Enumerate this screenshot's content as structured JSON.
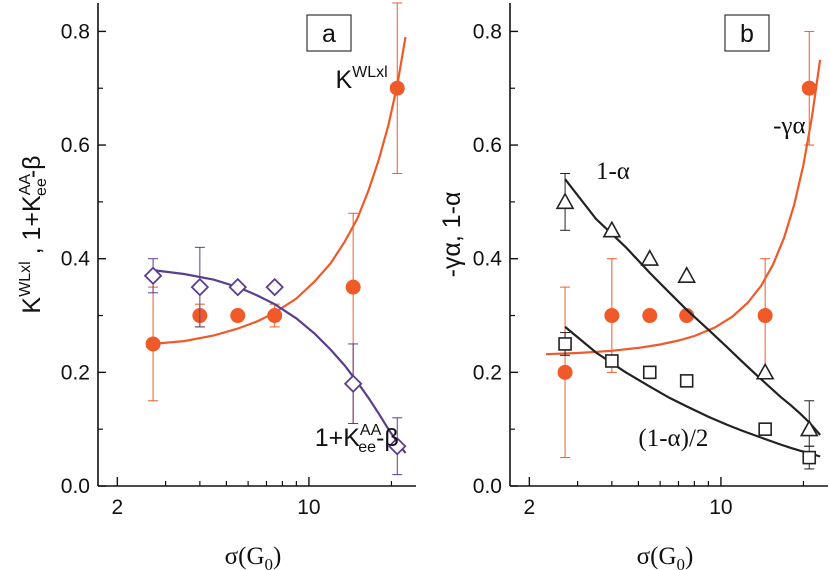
{
  "chart_data": [
    {
      "panel": "a",
      "type": "scatter",
      "x_scale": "log",
      "xlim": [
        1.7,
        25
      ],
      "ylim": [
        0,
        0.85
      ],
      "x_ticks": [
        {
          "value": 2,
          "label": "2"
        },
        {
          "value": 10,
          "label": "10"
        }
      ],
      "y_ticks": [
        {
          "value": 0.0,
          "label": "0.0"
        },
        {
          "value": 0.2,
          "label": "0.2"
        },
        {
          "value": 0.4,
          "label": "0.4"
        },
        {
          "value": 0.6,
          "label": "0.6"
        },
        {
          "value": 0.8,
          "label": "0.8"
        }
      ],
      "xlabel": "σ(G0)",
      "ylabel": "K^WLxl , 1+K_ee^AA-β",
      "panel_label": "a",
      "series": [
        {
          "label_main": "K",
          "label_sup": "WLxl",
          "label_anchor": {
            "x": 12.5,
            "y": 0.7
          },
          "marker": "filled-circle",
          "color": "#f05a28",
          "x": [
            2.7,
            4.0,
            5.5,
            7.5,
            14.5,
            21.0
          ],
          "y": [
            0.25,
            0.3,
            0.3,
            0.3,
            0.35,
            0.7
          ],
          "err_low": [
            0.15,
            0.28,
            null,
            0.28,
            0.11,
            0.55
          ],
          "err_high": [
            0.35,
            0.32,
            null,
            0.32,
            0.48,
            0.85
          ],
          "fit": {
            "color": "#f05a28",
            "x": [
              2.7,
              3.5,
              4.5,
              5.5,
              6.5,
              7.5,
              9,
              10.5,
              12,
              13.5,
              15,
              16.5,
              18,
              19.5,
              21,
              22.5
            ],
            "y": [
              0.25,
              0.255,
              0.265,
              0.277,
              0.29,
              0.305,
              0.33,
              0.36,
              0.392,
              0.43,
              0.47,
              0.52,
              0.575,
              0.635,
              0.705,
              0.79
            ]
          }
        },
        {
          "label_main": "1+K",
          "label_sup": "AA",
          "label_sub": "ee",
          "label_tail": "-β",
          "label_anchor": {
            "x": 10.5,
            "y": 0.07
          },
          "marker": "open-diamond",
          "color": "#5b3d8f",
          "x": [
            2.7,
            4.0,
            5.5,
            7.5,
            14.5,
            21.0
          ],
          "y": [
            0.37,
            0.35,
            0.35,
            0.35,
            0.18,
            0.07
          ],
          "err_low": [
            0.34,
            0.28,
            null,
            null,
            0.11,
            0.02
          ],
          "err_high": [
            0.4,
            0.42,
            null,
            null,
            0.25,
            0.12
          ],
          "fit": {
            "color": "#5b3d8f",
            "x": [
              2.7,
              3.5,
              4.5,
              5.5,
              6.5,
              7.5,
              9,
              10.5,
              12,
              13.5,
              15,
              16.5,
              18,
              19.5,
              21,
              22.5
            ],
            "y": [
              0.38,
              0.373,
              0.363,
              0.35,
              0.335,
              0.32,
              0.295,
              0.268,
              0.24,
              0.212,
              0.183,
              0.155,
              0.127,
              0.1,
              0.077,
              0.058
            ]
          }
        }
      ]
    },
    {
      "panel": "b",
      "type": "scatter",
      "x_scale": "log",
      "xlim": [
        1.7,
        25
      ],
      "ylim": [
        0,
        0.85
      ],
      "x_ticks": [
        {
          "value": 2,
          "label": "2"
        },
        {
          "value": 10,
          "label": "10"
        }
      ],
      "y_ticks": [
        {
          "value": 0.0,
          "label": "0.0"
        },
        {
          "value": 0.2,
          "label": "0.2"
        },
        {
          "value": 0.4,
          "label": "0.4"
        },
        {
          "value": 0.6,
          "label": "0.6"
        },
        {
          "value": 0.8,
          "label": "0.8"
        }
      ],
      "xlabel": "σ(G0)",
      "ylabel": "-γα, 1-α",
      "panel_label": "b",
      "series": [
        {
          "label_main": "-γα",
          "label_anchor": {
            "x": 15.5,
            "y": 0.62
          },
          "marker": "filled-circle",
          "color": "#f05a28",
          "x": [
            2.7,
            4.0,
            5.5,
            7.5,
            14.5,
            21.0
          ],
          "y": [
            0.2,
            0.3,
            0.3,
            0.3,
            0.3,
            0.7
          ],
          "err_low": [
            0.05,
            0.2,
            null,
            null,
            0.2,
            0.6
          ],
          "err_high": [
            0.35,
            0.4,
            null,
            null,
            0.4,
            0.8
          ],
          "fit": {
            "color": "#f05a28",
            "x": [
              2.3,
              3,
              4,
              5,
              6,
              7,
              8,
              9.5,
              11,
              12.5,
              14,
              15.5,
              17,
              18.5,
              20,
              21.5,
              23
            ],
            "y": [
              0.232,
              0.234,
              0.238,
              0.243,
              0.249,
              0.256,
              0.264,
              0.279,
              0.298,
              0.322,
              0.352,
              0.39,
              0.437,
              0.495,
              0.565,
              0.65,
              0.75
            ]
          }
        },
        {
          "label_main": "1-α",
          "label_anchor": {
            "x": 3.5,
            "y": 0.54
          },
          "marker": "open-triangle",
          "color": "#222222",
          "x": [
            2.7,
            4.0,
            5.5,
            7.5,
            14.5,
            21.0
          ],
          "y": [
            0.5,
            0.45,
            0.4,
            0.37,
            0.2,
            0.1
          ],
          "err_low": [
            0.45,
            null,
            null,
            null,
            null,
            0.07
          ],
          "err_high": [
            0.55,
            null,
            null,
            null,
            null,
            0.15
          ],
          "fit": {
            "color": "#222222",
            "x": [
              2.7,
              3.5,
              4.5,
              5.5,
              6.5,
              7.5,
              9,
              10.5,
              12,
              13.5,
              15,
              16.5,
              18,
              19.5,
              21,
              23
            ],
            "y": [
              0.54,
              0.47,
              0.42,
              0.375,
              0.34,
              0.31,
              0.275,
              0.245,
              0.218,
              0.195,
              0.175,
              0.157,
              0.142,
              0.127,
              0.112,
              0.09
            ]
          }
        },
        {
          "label_main": "(1-α)/2",
          "label_anchor": {
            "x": 5.0,
            "y": 0.07
          },
          "marker": "open-square",
          "color": "#222222",
          "x": [
            2.7,
            4.0,
            5.5,
            7.5,
            14.5,
            21.0
          ],
          "y": [
            0.25,
            0.22,
            0.2,
            0.185,
            0.1,
            0.05
          ],
          "err_low": [
            0.23,
            null,
            null,
            null,
            null,
            0.03
          ],
          "err_high": [
            0.27,
            null,
            null,
            null,
            null,
            0.07
          ],
          "fit": {
            "color": "#222222",
            "x": [
              2.7,
              3.5,
              4.5,
              5.5,
              6.5,
              7.5,
              9,
              10.5,
              12,
              13.5,
              15,
              16.5,
              18,
              19.5,
              21,
              23
            ],
            "y": [
              0.28,
              0.235,
              0.2,
              0.175,
              0.155,
              0.14,
              0.122,
              0.108,
              0.097,
              0.088,
              0.08,
              0.073,
              0.067,
              0.062,
              0.058,
              0.052
            ]
          }
        }
      ]
    }
  ]
}
